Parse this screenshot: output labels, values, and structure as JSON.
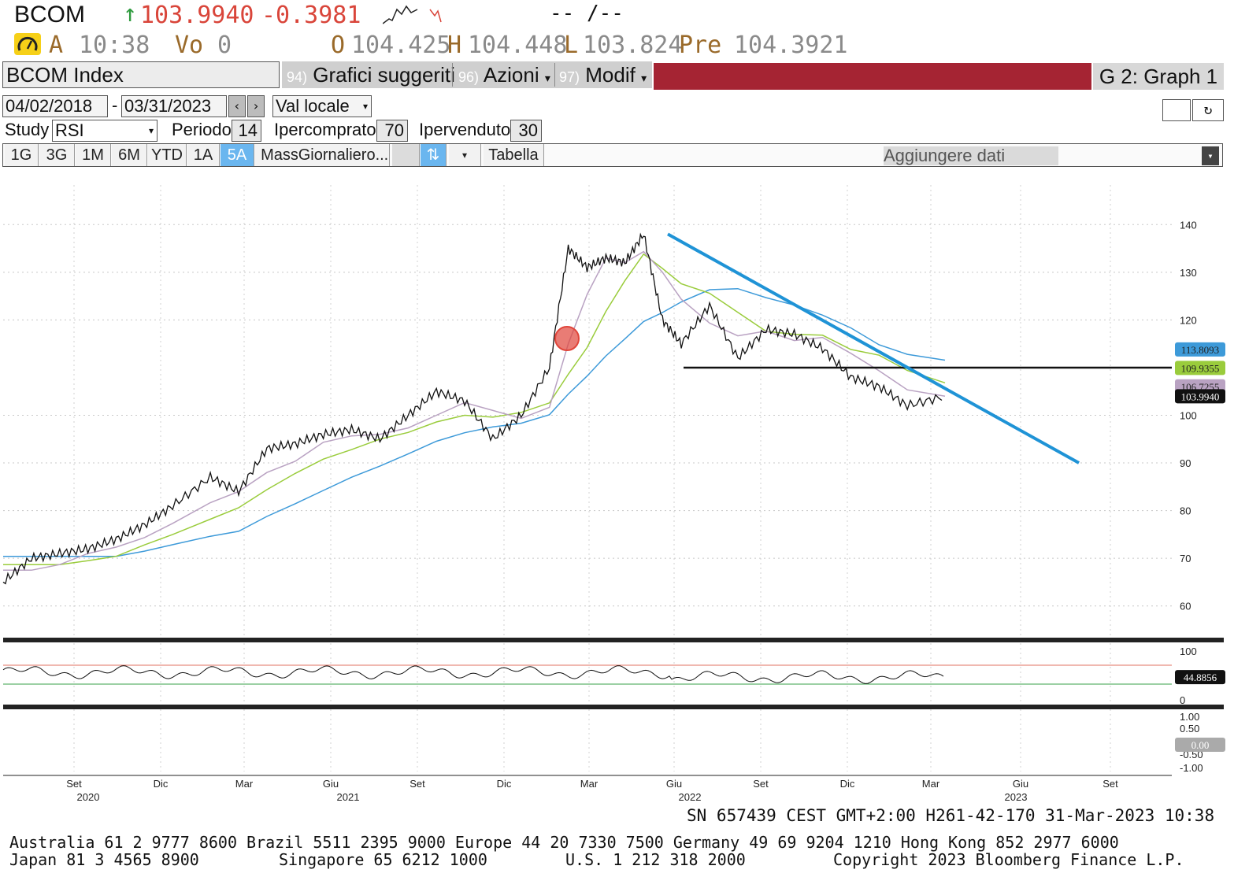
{
  "header": {
    "ticker": "BCOM",
    "price": "103.9940",
    "change": "-0.3981",
    "arrow": "↑",
    "dash_field": "-- /--",
    "time": "10:38",
    "time_prefix": "A",
    "volume_label": "Vo",
    "volume_value": "0",
    "open_label": "O",
    "open_value": "104.425",
    "high_label": "H",
    "high_value": "104.448",
    "low_label": "L",
    "low_value": "103.824",
    "pre_label": "Pre",
    "pre_value": "104.3921"
  },
  "toolbar": {
    "security": "BCOM Index",
    "menus": [
      {
        "num": "94)",
        "label": "Grafici suggeriti"
      },
      {
        "num": "96)",
        "label": "Azioni"
      },
      {
        "num": "97)",
        "label": "Modif"
      }
    ],
    "graph_title": "G 2: Graph 1"
  },
  "dates": {
    "start": "04/02/2018",
    "end": "03/31/2023",
    "currency": "Val locale"
  },
  "study": {
    "study_label": "Study",
    "study_value": "RSI",
    "period_label": "Periodo",
    "period_value": "14",
    "overbought_label": "Ipercomprato",
    "overbought_value": "70",
    "oversold_label": "Ipervenduto",
    "oversold_value": "30"
  },
  "range_buttons": [
    "1G",
    "3G",
    "1M",
    "6M",
    "YTD",
    "1A",
    "5A",
    "Mass"
  ],
  "active_range": "5A",
  "frequency": "Giornaliero...",
  "table_button": "Tabella",
  "add_data": "Aggiungere dati",
  "colors": {
    "price": "#111111",
    "ma_fast": "#b9a2c2",
    "ma_mid": "#9acc3c",
    "ma_slow": "#3d9ad9",
    "trendline": "#1f93d6",
    "support": "#111111",
    "rsi_overbought": "#e07060",
    "rsi_oversold": "#3aa04a",
    "marker": "#e0453a"
  },
  "chart_data": [
    {
      "type": "line",
      "x_ticks": [
        "Set",
        "Dic",
        "Mar",
        "Giu",
        "Set",
        "Dic",
        "Mar",
        "Giu",
        "Set",
        "Dic",
        "Mar",
        "Giu",
        "Set"
      ],
      "x_years": [
        "2020",
        "2021",
        "2022",
        "2023"
      ],
      "y_ticks": [
        140,
        130,
        120,
        100,
        90,
        80,
        70,
        60
      ],
      "ylim": [
        55,
        145
      ],
      "grid": true,
      "series": [
        {
          "x": [
            0.0,
            0.03,
            0.06,
            0.09,
            0.12,
            0.15,
            0.18,
            0.22,
            0.25,
            0.28,
            0.31,
            0.34,
            0.37,
            0.4,
            0.43,
            0.46,
            0.49,
            0.52,
            0.55,
            0.58,
            0.6,
            0.62,
            0.64,
            0.66,
            0.68,
            0.7,
            0.72,
            0.75,
            0.78,
            0.81,
            0.84,
            0.87,
            0.9,
            0.93,
            0.96,
            1.0
          ],
          "values": [
            65,
            70,
            71,
            72,
            74,
            77,
            81,
            87,
            84,
            93,
            94,
            96,
            97,
            95,
            100,
            105,
            103,
            95,
            100,
            110,
            135,
            131,
            133,
            132,
            138,
            120,
            115,
            123,
            112,
            118,
            117,
            114,
            108,
            106,
            102,
            104
          ]
        },
        {
          "name": "",
          "values": [
            113.8093
          ]
        },
        {
          "name": "",
          "values": [
            109.9355
          ]
        },
        {
          "name": "",
          "values": [
            106.7255
          ]
        }
      ],
      "last_value": "103.9940",
      "value_tags": [
        "113.8093",
        "109.9355",
        "106.7255",
        "103.9940"
      ],
      "support_level": 110,
      "trendline": {
        "from": [
          138
        ],
        "to": [
          90
        ]
      }
    },
    {
      "type": "line",
      "title": "RSI",
      "y_ticks": [
        100,
        0
      ],
      "ylim": [
        0,
        100
      ],
      "overbought": 70,
      "oversold": 30,
      "last_value": "44.8856"
    },
    {
      "type": "line",
      "y_ticks": [
        "1.00",
        "0.50",
        "-0.50",
        "-1.00"
      ],
      "last_value": "0.00"
    }
  ],
  "footer": {
    "sn_line": "SN 657439 CEST GMT+2:00 H261-42-170 31-Mar-2023 10:38",
    "line1": "Australia 61 2 9777 8600 Brazil 5511 2395 9000 Europe 44 20 7330 7500 Germany 49 69 9204 1210 Hong Kong 852 2977 6000",
    "line2_a": "Japan 81 3 4565 8900",
    "line2_b": "Singapore 65 6212 1000",
    "line2_c": "U.S. 1 212 318 2000",
    "line2_d": "Copyright 2023 Bloomberg Finance L.P."
  }
}
